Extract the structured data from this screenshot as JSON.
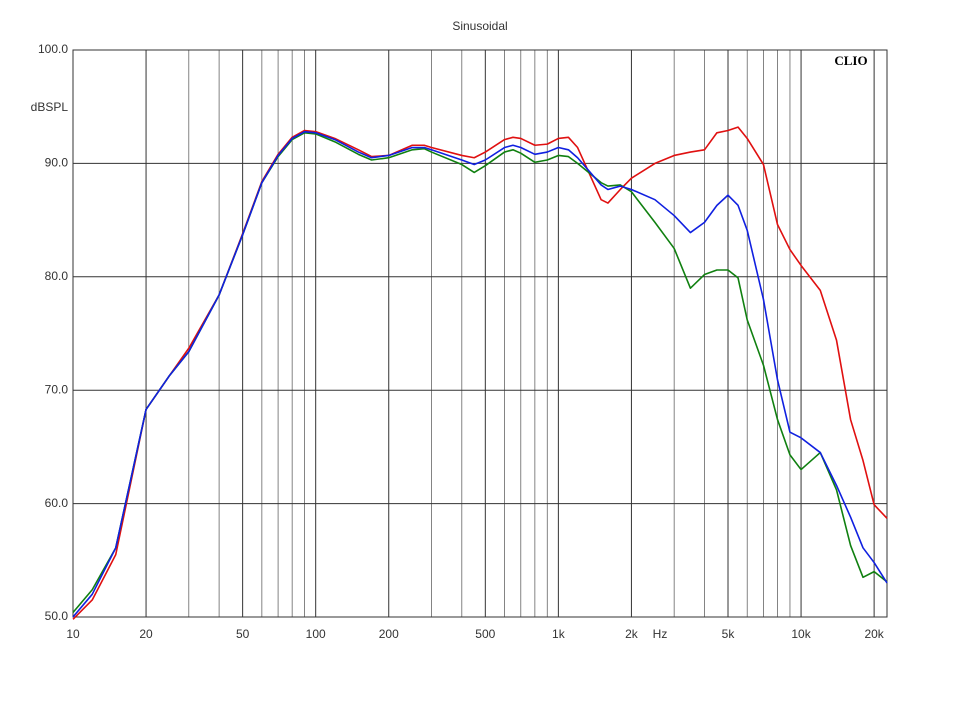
{
  "chart_data": {
    "type": "line",
    "title": "Sinusoidal",
    "ylabel": "dBSPL",
    "x_unit": "Hz",
    "watermark": "CLIO",
    "xscale": "log",
    "grid": true,
    "xlim": [
      10,
      22600
    ],
    "ylim": [
      50,
      100
    ],
    "xticks": [
      10,
      20,
      50,
      100,
      200,
      500,
      {
        "value": 1000,
        "label": "1k"
      },
      {
        "value": 2000,
        "label": "2k"
      },
      {
        "value": 5000,
        "label": "5k"
      },
      {
        "value": 10000,
        "label": "10k"
      },
      {
        "value": 20000,
        "label": "20k"
      }
    ],
    "xminor": [
      30,
      40,
      60,
      70,
      80,
      90,
      300,
      400,
      600,
      700,
      800,
      900,
      3000,
      4000,
      6000,
      7000,
      8000,
      9000
    ],
    "yticks": [
      {
        "value": 50,
        "label": "50.0"
      },
      {
        "value": 60,
        "label": "60.0"
      },
      {
        "value": 70,
        "label": "70.0"
      },
      {
        "value": 80,
        "label": "80.0"
      },
      {
        "value": 90,
        "label": "90.0"
      },
      {
        "value": 100,
        "label": "100.0"
      }
    ],
    "x": [
      10,
      12,
      15,
      20,
      25,
      30,
      40,
      50,
      60,
      70,
      80,
      90,
      100,
      120,
      150,
      170,
      200,
      250,
      280,
      300,
      400,
      450,
      500,
      600,
      650,
      700,
      800,
      900,
      1000,
      1100,
      1200,
      1500,
      1600,
      1800,
      2000,
      2500,
      3000,
      3500,
      4000,
      4500,
      5000,
      5500,
      6000,
      7000,
      8000,
      9000,
      10000,
      12000,
      14000,
      16000,
      18000,
      20000,
      22600
    ],
    "series": [
      {
        "color": "#e01010",
        "values": [
          49.8,
          51.5,
          55.5,
          68.3,
          71.3,
          73.7,
          78.4,
          83.8,
          88.4,
          90.8,
          92.3,
          92.9,
          92.8,
          92.2,
          91.2,
          90.6,
          90.7,
          91.6,
          91.6,
          91.4,
          90.7,
          90.5,
          91.0,
          92.1,
          92.3,
          92.2,
          91.6,
          91.7,
          92.2,
          92.3,
          91.4,
          86.8,
          86.5,
          87.7,
          88.7,
          90.0,
          90.7,
          91.0,
          91.2,
          92.7,
          92.9,
          93.2,
          92.2,
          89.9,
          84.6,
          82.4,
          81.0,
          78.8,
          74.4,
          67.4,
          63.8,
          59.9,
          58.7
        ]
      },
      {
        "color": "#108010",
        "values": [
          50.4,
          52.4,
          56.1,
          68.3,
          71.3,
          73.4,
          78.4,
          83.7,
          88.3,
          90.6,
          92.1,
          92.7,
          92.6,
          91.9,
          90.8,
          90.3,
          90.5,
          91.2,
          91.3,
          91.0,
          89.9,
          89.2,
          89.8,
          91.0,
          91.2,
          90.9,
          90.1,
          90.3,
          90.7,
          90.6,
          90.0,
          88.3,
          88.0,
          88.1,
          87.5,
          84.8,
          82.5,
          79.0,
          80.2,
          80.6,
          80.6,
          79.9,
          76.2,
          72.2,
          67.4,
          64.3,
          63.0,
          64.5,
          61.2,
          56.3,
          53.5,
          54.0,
          53.1
        ]
      },
      {
        "color": "#1020e0",
        "values": [
          50.0,
          52.0,
          56.1,
          68.3,
          71.3,
          73.4,
          78.4,
          83.7,
          88.3,
          90.7,
          92.2,
          92.8,
          92.7,
          92.1,
          91.0,
          90.5,
          90.7,
          91.4,
          91.4,
          91.2,
          90.3,
          89.9,
          90.3,
          91.4,
          91.6,
          91.4,
          90.8,
          91.0,
          91.4,
          91.2,
          90.5,
          88.1,
          87.7,
          88.0,
          87.7,
          86.8,
          85.4,
          83.9,
          84.8,
          86.3,
          87.2,
          86.3,
          84.1,
          78.0,
          70.9,
          66.3,
          65.8,
          64.5,
          61.6,
          58.8,
          56.1,
          54.8,
          53.0
        ]
      }
    ]
  }
}
